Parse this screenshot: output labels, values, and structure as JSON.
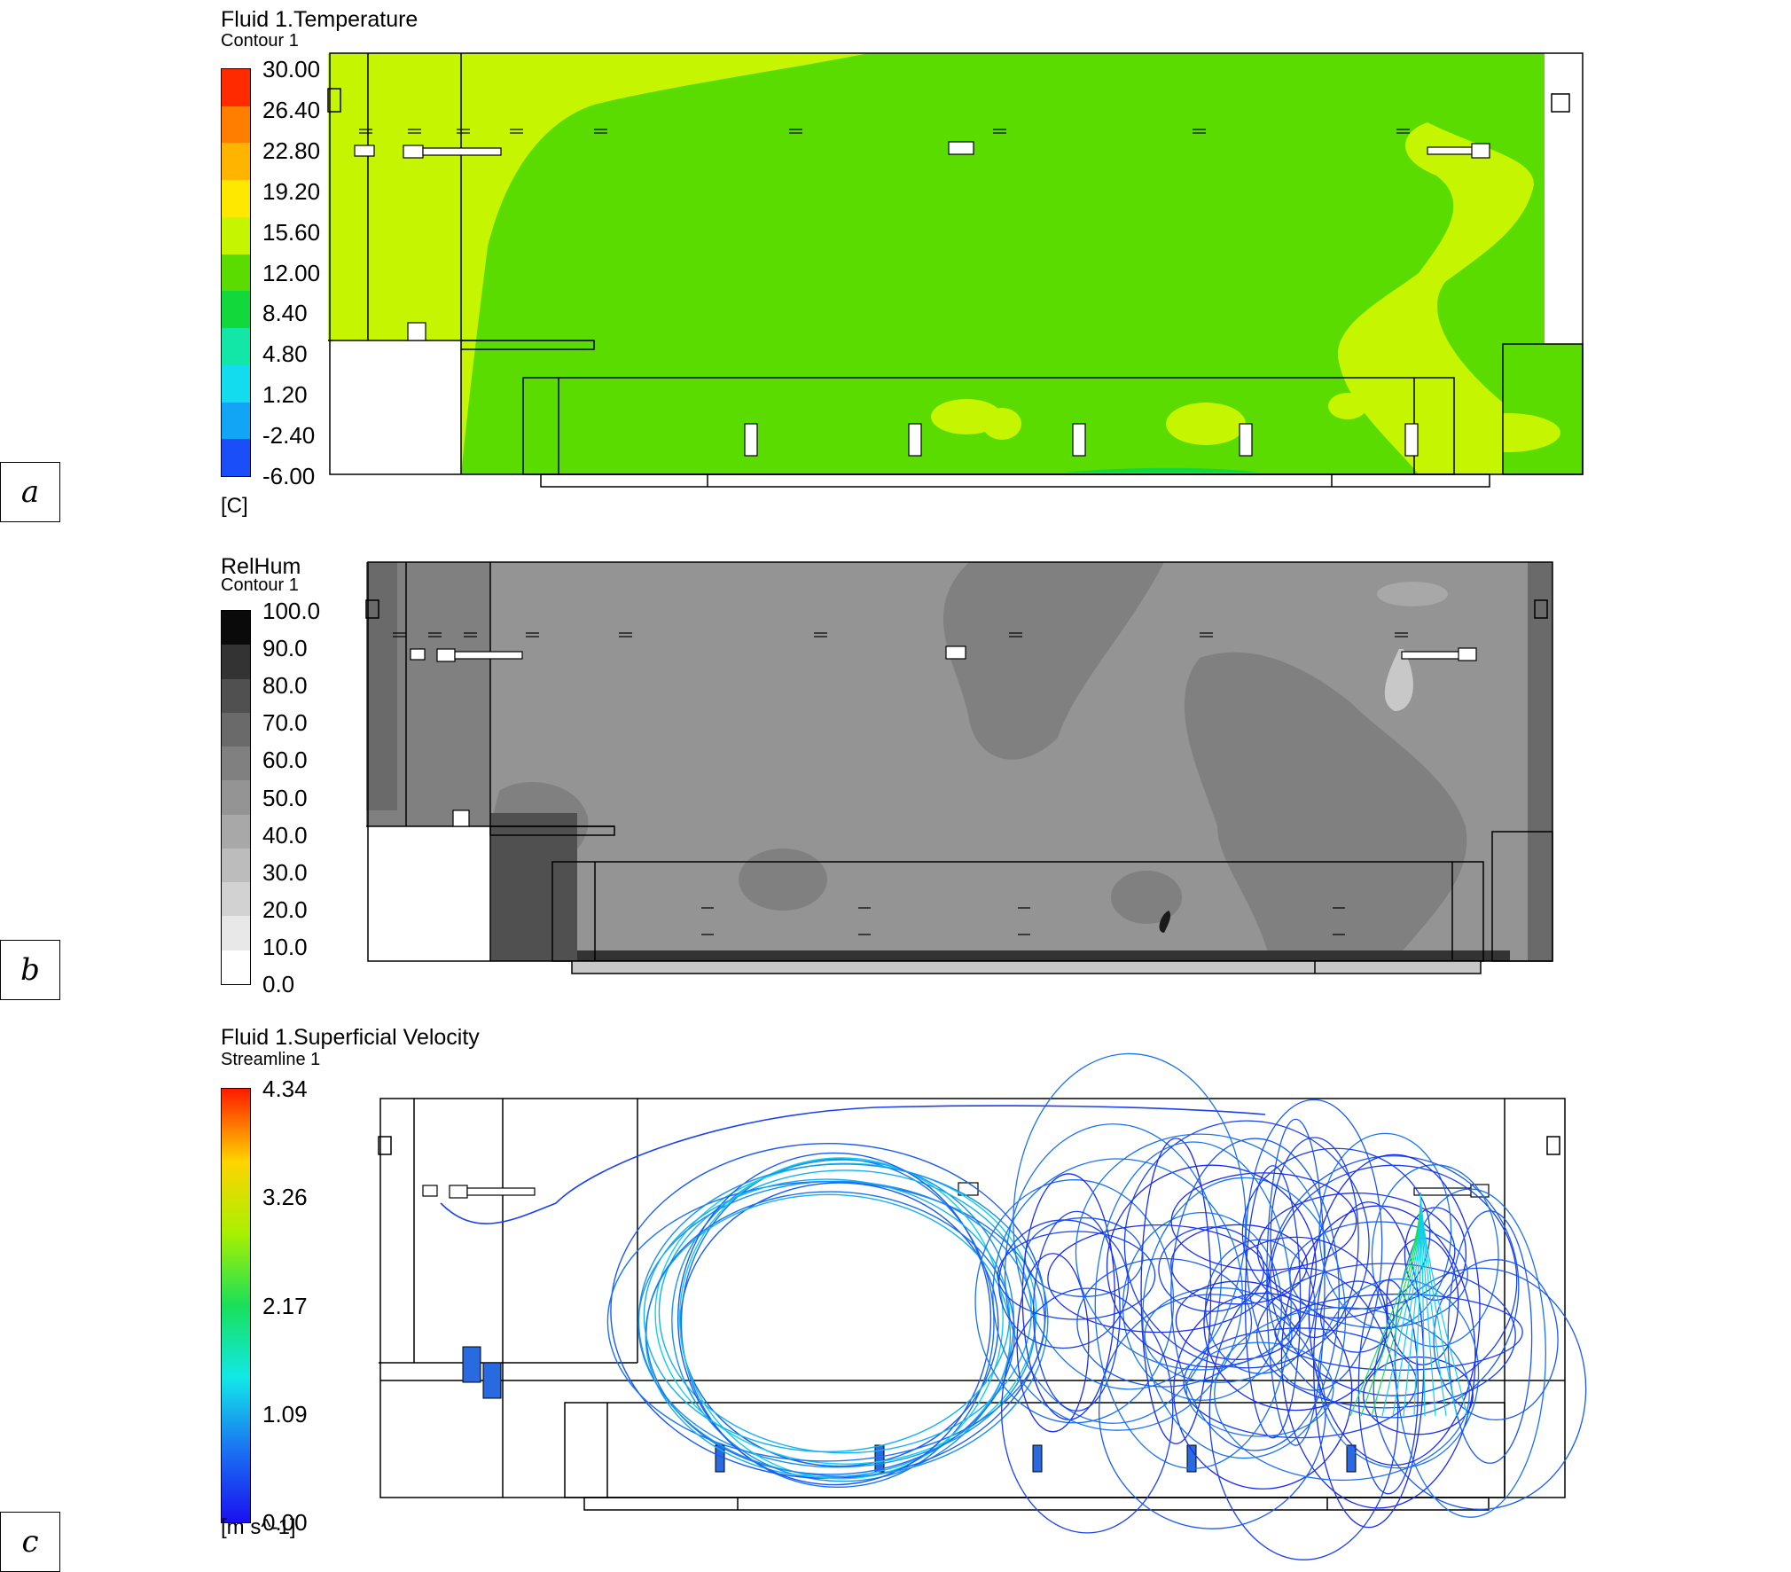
{
  "panels": [
    {
      "label": "a",
      "title": "Fluid 1.Temperature",
      "subtitle": "Contour 1",
      "unit": "[C]",
      "ticks": [
        "30.00",
        "26.40",
        "22.80",
        "19.20",
        "15.60",
        "12.00",
        "8.40",
        "4.80",
        "1.20",
        "-2.40",
        "-6.00"
      ],
      "colors": [
        "#ff2a00",
        "#ff7e00",
        "#ffb400",
        "#ffe800",
        "#c6f500",
        "#5bdc00",
        "#13d83c",
        "#12e7a8",
        "#12dcee",
        "#12a4f5",
        "#1a4ef8"
      ]
    },
    {
      "label": "b",
      "title": "RelHum",
      "subtitle": "Contour 1",
      "unit": "",
      "ticks": [
        "100.0",
        "90.0",
        "80.0",
        "70.0",
        "60.0",
        "50.0",
        "40.0",
        "30.0",
        "20.0",
        "10.0",
        "0.0"
      ],
      "colors": [
        "#0a0a0a",
        "#333333",
        "#505050",
        "#6a6a6a",
        "#808080",
        "#949494",
        "#a8a8a8",
        "#bcbcbc",
        "#d2d2d2",
        "#e8e8e8",
        "#ffffff"
      ]
    },
    {
      "label": "c",
      "title": "Fluid 1.Superficial Velocity",
      "subtitle": "Streamline 1",
      "unit": "[m s^-1]",
      "ticks": [
        "4.34",
        "3.26",
        "2.17",
        "1.09",
        "0.00"
      ],
      "gradient": [
        "#ff1a00",
        "#ffd400",
        "#a8f000",
        "#18e05a",
        "#12e8e8",
        "#1a72f2",
        "#1a10f0"
      ]
    }
  ]
}
